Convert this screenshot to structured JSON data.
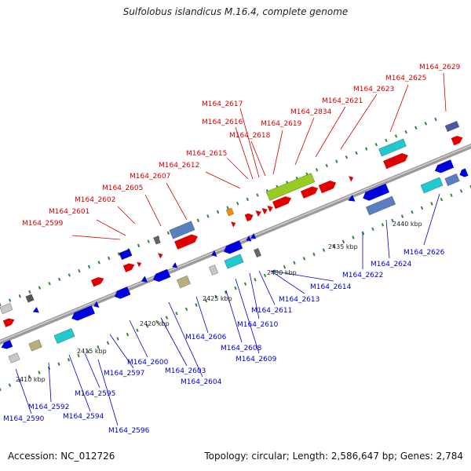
{
  "title": "Sulfolobus islandicus M.16.4, complete genome",
  "footer": {
    "accession": "Accession: NC_012726",
    "summary": "Topology: circular; Length: 2,586,647 bp; Genes: 2,784"
  },
  "colors": {
    "forward_label": "#d40000",
    "reverse_label": "#0000cc",
    "backbone": "#8c8c8c",
    "tick_marks": "#2e8b2e"
  },
  "tick_labels": [
    "2410 kbp",
    "2415 kbp",
    "2420 kbp",
    "2425 kbp",
    "2430 kbp",
    "2435 kbp",
    "2440 kbp"
  ],
  "forward_genes": [
    "M164_2599",
    "M164_2601",
    "M164_2602",
    "M164_2605",
    "M164_2607",
    "M164_2612",
    "M164_2615",
    "M164_2616",
    "M164_2617",
    "M164_2618",
    "M164_2619",
    "M164_2834",
    "M164_2621",
    "M164_2623",
    "M164_2625",
    "M164_2629"
  ],
  "reverse_genes": [
    "M164_2590",
    "M164_2592",
    "M164_2594",
    "M164_2595",
    "M164_2596",
    "M164_2597",
    "M164_2600",
    "M164_2603",
    "M164_2604",
    "M164_2606",
    "M164_2608",
    "M164_2609",
    "M164_2610",
    "M164_2611",
    "M164_2613",
    "M164_2614",
    "M164_2622",
    "M164_2624",
    "M164_2626"
  ]
}
